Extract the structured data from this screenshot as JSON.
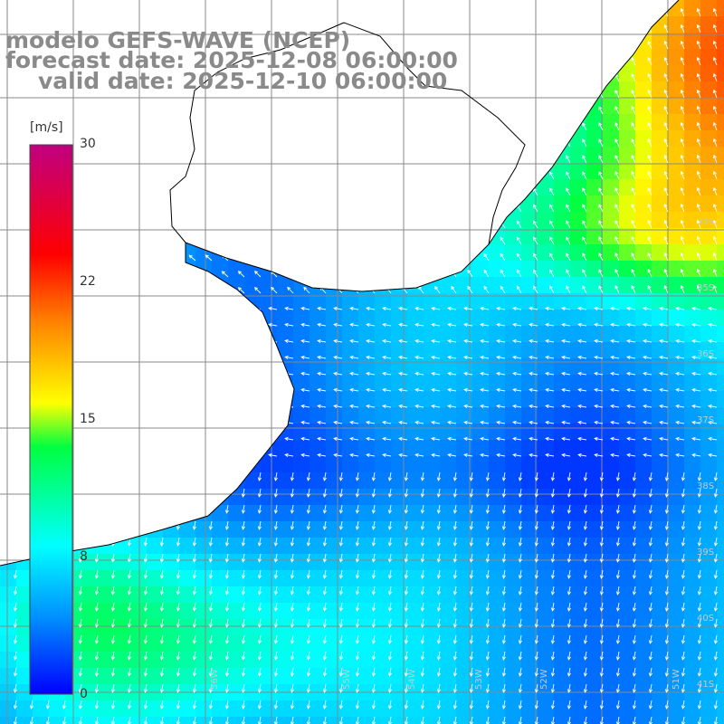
{
  "header": {
    "title": "modelo GEFS-WAVE (NCEP)",
    "forecast": "forecast date: 2025-12-08 06:00:00",
    "valid": "valid date: 2025-12-10 06:00:00"
  },
  "colorbar": {
    "unit": "[m/s]",
    "ticks": [
      "30",
      "22",
      "15",
      "8",
      "0"
    ],
    "tick_values": [
      30,
      22,
      15,
      8,
      0
    ],
    "range": [
      0,
      30
    ],
    "colors": [
      "#0000ff",
      "#0090ff",
      "#00ffff",
      "#00ff40",
      "#ffff00",
      "#ff8000",
      "#ff0000",
      "#c00080"
    ]
  },
  "map": {
    "lat_labels": [
      "34S",
      "35S",
      "36S",
      "37S",
      "38S",
      "39S",
      "40S",
      "41S"
    ],
    "lon_labels": [
      "56W",
      "55W",
      "54W",
      "53W",
      "52W",
      "51W"
    ],
    "land_color": "#ffffff",
    "grid_color": "#888888",
    "arrow_color": "#ffffff"
  }
}
